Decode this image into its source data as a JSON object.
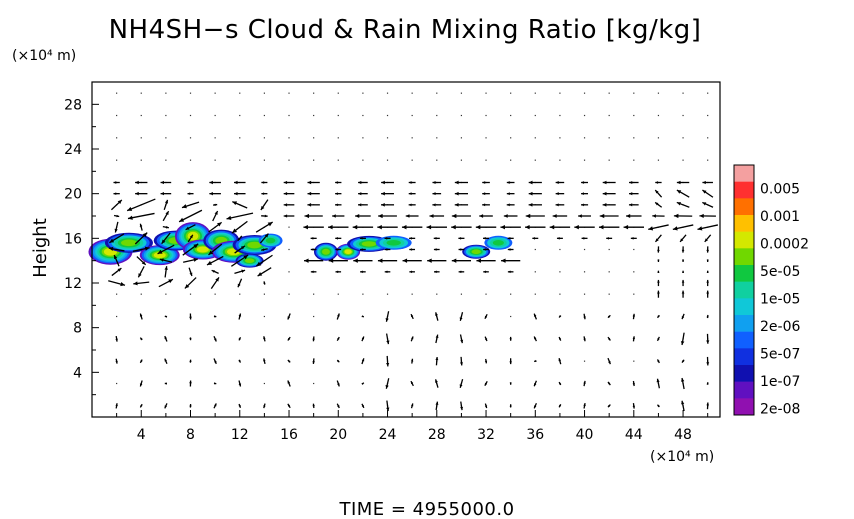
{
  "chart_data": {
    "type": "heatmap",
    "title": "NH4SH−s Cloud & Rain Mixing Ratio [kg/kg]",
    "ylabel": "Height",
    "y_unit": "(×10⁴ m)",
    "x_unit": "(×10⁴ m)",
    "xlim": [
      0,
      51
    ],
    "ylim": [
      0,
      30
    ],
    "x_ticks": [
      "4",
      "8",
      "12",
      "16",
      "20",
      "24",
      "28",
      "32",
      "36",
      "40",
      "44",
      "48"
    ],
    "y_ticks": [
      "4",
      "8",
      "12",
      "16",
      "20",
      "24",
      "28"
    ],
    "colorbar": {
      "labels": [
        "0.005",
        "0.001",
        "0.0002",
        "5e-05",
        "1e-05",
        "2e-06",
        "5e-07",
        "1e-07",
        "2e-08"
      ],
      "colors": [
        "#f4a0a0",
        "#ff3030",
        "#ff7000",
        "#ffc000",
        "#d4e800",
        "#70d800",
        "#10c840",
        "#10d0a0",
        "#10c8d8",
        "#10a0f0",
        "#1060ff",
        "#1030e0",
        "#1010b0",
        "#6010c0",
        "#9010b0"
      ]
    },
    "cloud_regions": [
      {
        "x": [
          0,
          15
        ],
        "y": [
          13.5,
          17.5
        ],
        "max_level": "1e-05"
      },
      {
        "x": [
          18,
          26
        ],
        "y": [
          14,
          16
        ],
        "max_level": "1e-05"
      },
      {
        "x": [
          31,
          34
        ],
        "y": [
          14.5,
          16
        ],
        "max_level": "2e-06"
      }
    ],
    "wind_bands": [
      {
        "name": "westward jet",
        "y": 17,
        "x": [
          17,
          51
        ]
      },
      {
        "name": "westward jet",
        "y": 14,
        "x": [
          18,
          34
        ]
      },
      {
        "name": "downdrafts",
        "y": [
          4,
          10
        ],
        "x": [
          24,
          32
        ]
      }
    ],
    "grid": "dotted",
    "time_label": "TIME  =  4955000.0"
  }
}
